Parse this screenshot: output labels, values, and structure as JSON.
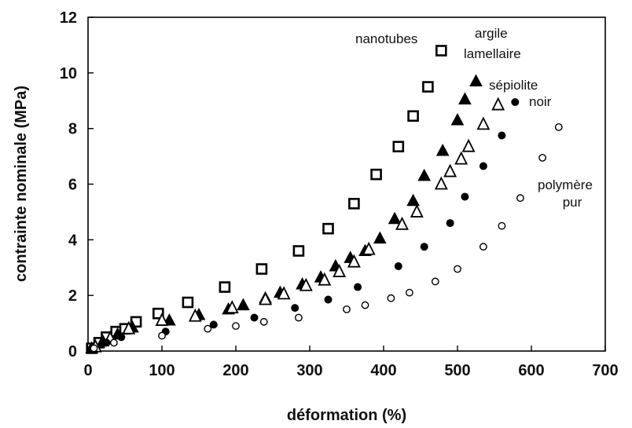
{
  "chart_data": {
    "type": "scatter",
    "xlabel": "déformation (%)",
    "ylabel": "contrainte nominale (MPa)",
    "xlim": [
      0,
      700
    ],
    "ylim": [
      0,
      12
    ],
    "xticks": [
      0,
      100,
      200,
      300,
      400,
      500,
      600,
      700
    ],
    "yticks": [
      0,
      2,
      4,
      6,
      8,
      10,
      12
    ],
    "grid": false,
    "legend": "none",
    "annotations": [
      {
        "text": "nanotubes",
        "series": "nanotubes"
      },
      {
        "text": "argile",
        "series": "argile lamellaire"
      },
      {
        "text": "lamellaire",
        "series": "argile lamellaire"
      },
      {
        "text": "sépiolite",
        "series": "sépiolite"
      },
      {
        "text": "noir",
        "series": "noir"
      },
      {
        "text": "polymère",
        "series": "polymère pur"
      },
      {
        "text": "pur",
        "series": "polymère pur"
      }
    ],
    "series": [
      {
        "name": "nanotubes",
        "marker": "square-open",
        "points": [
          [
            5,
            0.1
          ],
          [
            15,
            0.3
          ],
          [
            25,
            0.5
          ],
          [
            38,
            0.7
          ],
          [
            50,
            0.8
          ],
          [
            65,
            1.05
          ],
          [
            95,
            1.35
          ],
          [
            135,
            1.75
          ],
          [
            185,
            2.3
          ],
          [
            235,
            2.95
          ],
          [
            285,
            3.6
          ],
          [
            325,
            4.4
          ],
          [
            360,
            5.3
          ],
          [
            390,
            6.35
          ],
          [
            420,
            7.35
          ],
          [
            440,
            8.45
          ],
          [
            460,
            9.5
          ],
          [
            478,
            10.8
          ]
        ]
      },
      {
        "name": "argile lamellaire",
        "marker": "triangle-filled",
        "points": [
          [
            5,
            0.1
          ],
          [
            20,
            0.35
          ],
          [
            40,
            0.6
          ],
          [
            60,
            0.85
          ],
          [
            110,
            1.1
          ],
          [
            150,
            1.3
          ],
          [
            190,
            1.5
          ],
          [
            210,
            1.65
          ],
          [
            240,
            1.9
          ],
          [
            260,
            2.1
          ],
          [
            290,
            2.4
          ],
          [
            315,
            2.65
          ],
          [
            335,
            3.05
          ],
          [
            355,
            3.35
          ],
          [
            375,
            3.6
          ],
          [
            395,
            4.05
          ],
          [
            415,
            4.75
          ],
          [
            440,
            5.4
          ],
          [
            455,
            6.3
          ],
          [
            480,
            7.2
          ],
          [
            500,
            8.3
          ],
          [
            510,
            9.05
          ],
          [
            525,
            9.7
          ]
        ]
      },
      {
        "name": "sépiolite",
        "marker": "triangle-open",
        "points": [
          [
            10,
            0.15
          ],
          [
            30,
            0.45
          ],
          [
            55,
            0.8
          ],
          [
            100,
            1.1
          ],
          [
            145,
            1.25
          ],
          [
            195,
            1.55
          ],
          [
            240,
            1.85
          ],
          [
            265,
            2.05
          ],
          [
            295,
            2.35
          ],
          [
            320,
            2.55
          ],
          [
            340,
            2.85
          ],
          [
            360,
            3.2
          ],
          [
            380,
            3.65
          ],
          [
            425,
            4.55
          ],
          [
            445,
            5.0
          ],
          [
            478,
            6.0
          ],
          [
            490,
            6.45
          ],
          [
            505,
            6.9
          ],
          [
            515,
            7.35
          ],
          [
            535,
            8.15
          ],
          [
            555,
            8.85
          ]
        ]
      },
      {
        "name": "noir",
        "marker": "circle-filled",
        "points": [
          [
            5,
            0.1
          ],
          [
            25,
            0.3
          ],
          [
            45,
            0.5
          ],
          [
            105,
            0.7
          ],
          [
            170,
            0.95
          ],
          [
            225,
            1.2
          ],
          [
            280,
            1.55
          ],
          [
            325,
            1.85
          ],
          [
            365,
            2.3
          ],
          [
            420,
            3.05
          ],
          [
            455,
            3.75
          ],
          [
            490,
            4.6
          ],
          [
            510,
            5.55
          ],
          [
            535,
            6.65
          ],
          [
            560,
            7.75
          ],
          [
            578,
            8.95
          ]
        ]
      },
      {
        "name": "polymère pur",
        "marker": "circle-open",
        "points": [
          [
            8,
            0.1
          ],
          [
            35,
            0.3
          ],
          [
            100,
            0.55
          ],
          [
            162,
            0.8
          ],
          [
            200,
            0.9
          ],
          [
            238,
            1.05
          ],
          [
            285,
            1.2
          ],
          [
            350,
            1.5
          ],
          [
            375,
            1.65
          ],
          [
            410,
            1.9
          ],
          [
            435,
            2.1
          ],
          [
            470,
            2.5
          ],
          [
            500,
            2.95
          ],
          [
            535,
            3.75
          ],
          [
            560,
            4.5
          ],
          [
            585,
            5.5
          ],
          [
            615,
            6.95
          ],
          [
            637,
            8.05
          ]
        ]
      }
    ]
  }
}
